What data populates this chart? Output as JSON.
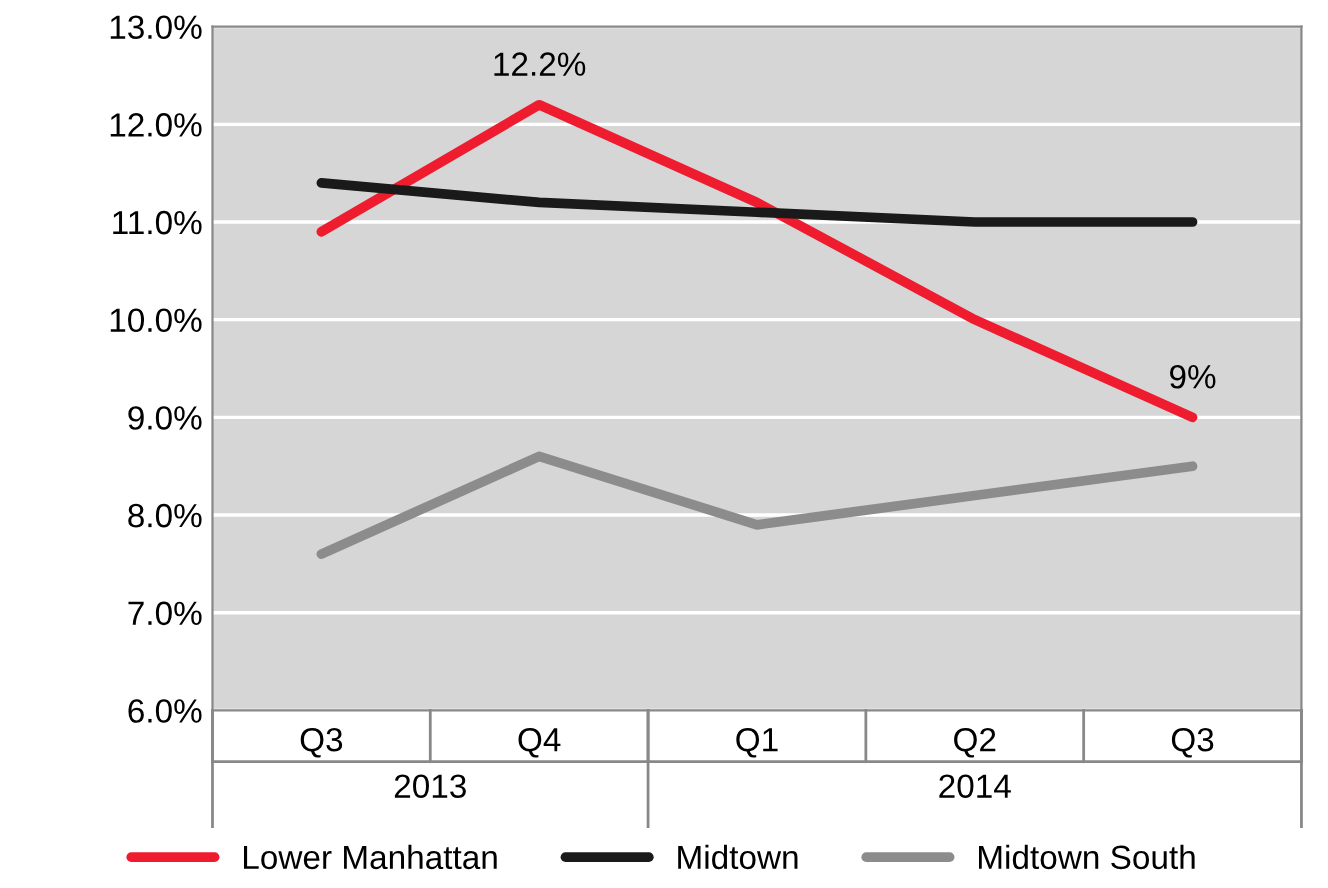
{
  "chart_data": {
    "type": "line",
    "categories": [
      "Q3",
      "Q4",
      "Q1",
      "Q2",
      "Q3"
    ],
    "series": [
      {
        "name": "Lower Manhattan",
        "color": "#ee1c2e",
        "values": [
          10.9,
          12.2,
          11.2,
          10.0,
          9.0
        ],
        "value_labels": [
          null,
          "12.2%",
          null,
          null,
          "9%"
        ]
      },
      {
        "name": "Midtown",
        "color": "#1a1a1a",
        "values": [
          11.4,
          11.2,
          11.1,
          11.0,
          11.0
        ]
      },
      {
        "name": "Midtown South",
        "color": "#8c8c8c",
        "values": [
          7.6,
          8.6,
          7.9,
          8.2,
          8.5
        ]
      }
    ],
    "annotations": [
      "2013",
      "2014"
    ],
    "ylim": [
      6,
      13
    ],
    "yticks": [
      {
        "value": 6,
        "label": "6.0%"
      },
      {
        "value": 7,
        "label": "7.0%"
      },
      {
        "value": 8,
        "label": "8.0%"
      },
      {
        "value": 9,
        "label": "9.0%"
      },
      {
        "value": 10,
        "label": "10.0%"
      },
      {
        "value": 11,
        "label": "11.0%"
      },
      {
        "value": 12,
        "label": "12.0%"
      },
      {
        "value": 13,
        "label": "13.0%"
      }
    ],
    "grid": "y",
    "legend": "bottom",
    "marker": "none",
    "line_style": "solid"
  }
}
